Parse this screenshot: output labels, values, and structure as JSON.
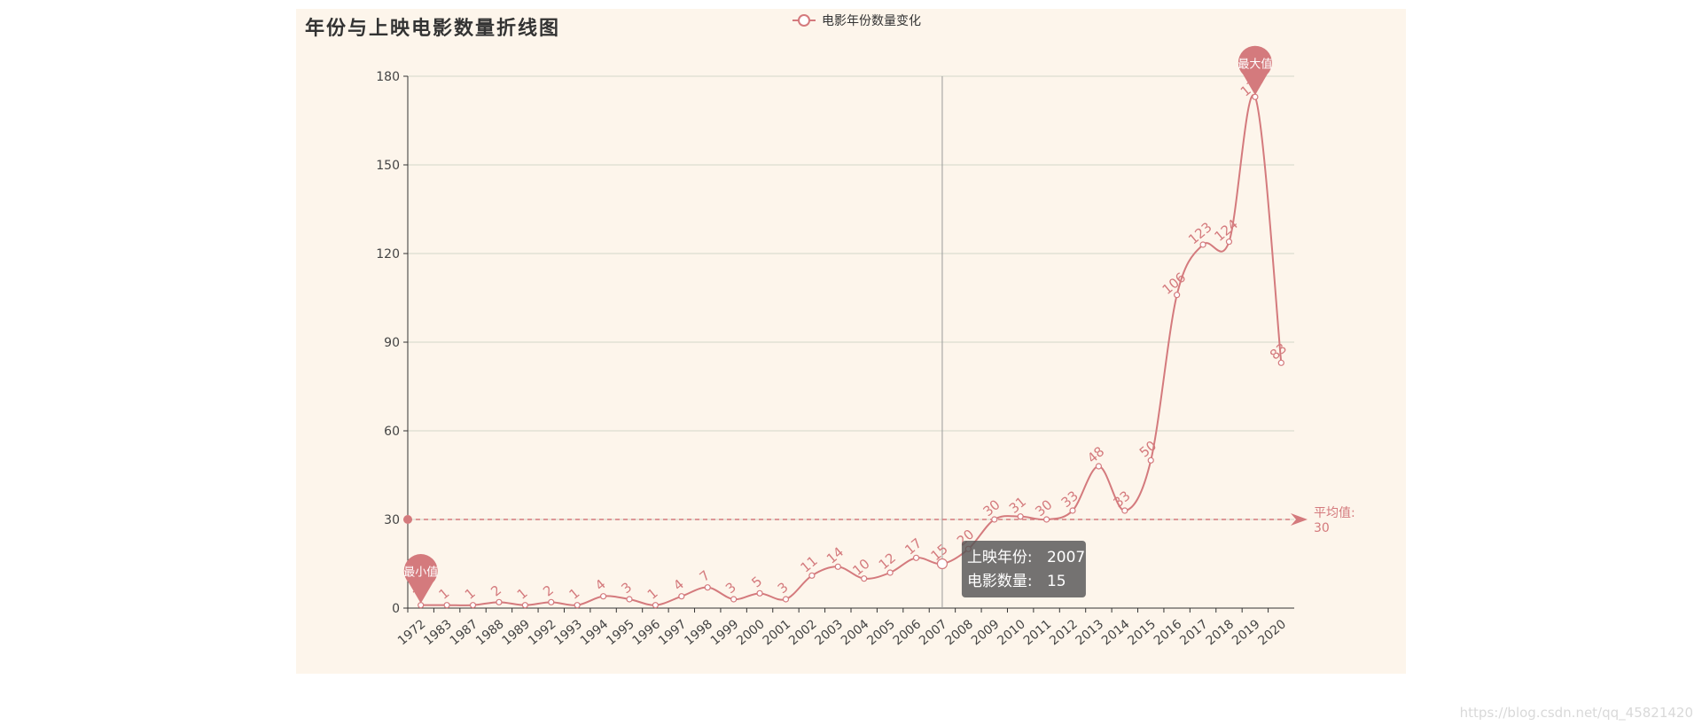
{
  "chart_data": {
    "type": "line",
    "title": "年份与上映电影数量折线图",
    "legend": "电影年份数量变化",
    "legend_position": "top-center",
    "smooth": true,
    "grid": true,
    "ylim": [
      0,
      180
    ],
    "y_ticks": [
      0,
      30,
      60,
      90,
      120,
      150,
      180
    ],
    "series": [
      {
        "name": "电影年份数量变化",
        "color": "#d47a7d",
        "x": [
          "1972",
          "1983",
          "1987",
          "1988",
          "1989",
          "1992",
          "1993",
          "1994",
          "1995",
          "1996",
          "1997",
          "1998",
          "1999",
          "2000",
          "2001",
          "2002",
          "2003",
          "2004",
          "2005",
          "2006",
          "2007",
          "2008",
          "2009",
          "2010",
          "2011",
          "2012",
          "2013",
          "2014",
          "2015",
          "2016",
          "2017",
          "2018",
          "2019",
          "2020"
        ],
        "values": [
          1,
          1,
          1,
          2,
          1,
          2,
          1,
          4,
          3,
          1,
          4,
          7,
          3,
          5,
          3,
          11,
          14,
          10,
          12,
          17,
          15,
          20,
          30,
          31,
          30,
          33,
          48,
          33,
          50,
          106,
          123,
          124,
          173,
          83
        ]
      }
    ],
    "mark_point": {
      "max_label": "最大值",
      "min_label": "最小值"
    },
    "mark_line": {
      "label": "平均值:",
      "value": 30
    },
    "tooltip": {
      "year_label": "上映年份:",
      "year": "2007",
      "count_label": "电影数量:",
      "count": 15
    }
  },
  "watermark": "https://blog.csdn.net/qq_45821420"
}
